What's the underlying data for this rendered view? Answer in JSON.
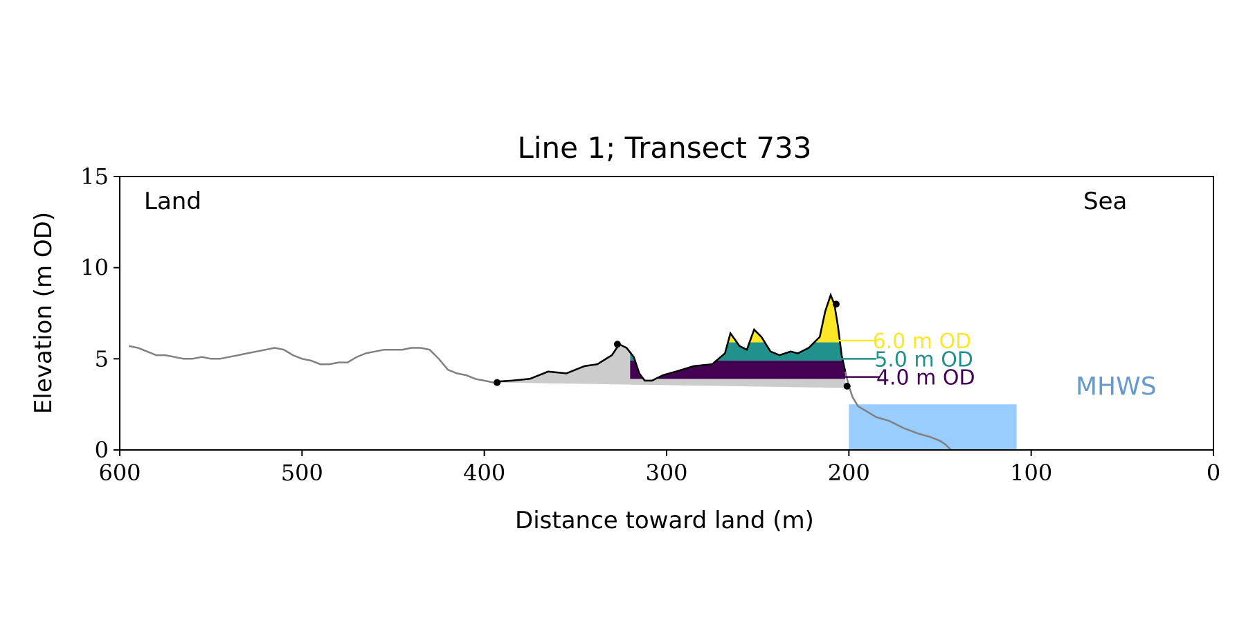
{
  "chart_data": {
    "type": "area",
    "title": "Line 1; Transect 733",
    "xlabel": "Distance toward land (m)",
    "ylabel": "Elevation (m OD)",
    "xlim": [
      600,
      0
    ],
    "ylim": [
      0,
      15
    ],
    "xticks": [
      600,
      500,
      400,
      300,
      200,
      100,
      0
    ],
    "yticks": [
      0,
      5,
      10,
      15
    ],
    "grid": false,
    "annotations": {
      "land": "Land",
      "sea": "Sea"
    },
    "colors": {
      "profile": "#808080",
      "dune_outline": "#000000",
      "dune_fill": "#cccccc",
      "level_6": "#fde725",
      "level_5": "#21918c",
      "level_4": "#440154",
      "mhws": "#99ccff",
      "mhws_label": "#6699cc"
    },
    "profile": {
      "x": [
        595,
        590,
        585,
        580,
        575,
        570,
        565,
        560,
        555,
        550,
        545,
        540,
        535,
        530,
        525,
        520,
        515,
        510,
        505,
        500,
        495,
        490,
        485,
        480,
        475,
        470,
        465,
        460,
        455,
        450,
        445,
        440,
        435,
        430,
        425,
        420,
        415,
        410,
        405,
        400,
        395,
        393,
        385,
        375,
        365,
        355,
        345,
        338,
        330,
        326,
        322,
        318,
        315,
        312,
        308,
        302,
        295,
        285,
        275,
        268,
        265,
        260,
        256,
        252,
        248,
        243,
        238,
        232,
        228,
        222,
        216,
        213,
        210,
        208,
        206,
        204,
        202,
        200,
        198,
        195,
        190,
        185,
        178,
        170,
        162,
        155,
        150,
        147,
        144
      ],
      "y": [
        5.7,
        5.6,
        5.4,
        5.2,
        5.2,
        5.1,
        5.0,
        5.0,
        5.1,
        5.0,
        5.0,
        5.1,
        5.2,
        5.3,
        5.4,
        5.5,
        5.6,
        5.5,
        5.2,
        5.0,
        4.9,
        4.7,
        4.7,
        4.8,
        4.8,
        5.1,
        5.3,
        5.4,
        5.5,
        5.5,
        5.5,
        5.6,
        5.6,
        5.5,
        5.0,
        4.4,
        4.2,
        4.1,
        3.9,
        3.8,
        3.7,
        3.75,
        3.8,
        3.9,
        4.3,
        4.2,
        4.6,
        4.7,
        5.2,
        5.8,
        5.6,
        5.1,
        4.2,
        3.8,
        3.8,
        4.1,
        4.3,
        4.6,
        4.7,
        5.3,
        6.4,
        5.7,
        5.5,
        6.6,
        6.2,
        5.4,
        5.2,
        5.4,
        5.3,
        5.6,
        6.2,
        7.6,
        8.5,
        8.0,
        6.8,
        5.2,
        4.3,
        3.5,
        2.9,
        2.4,
        2.1,
        1.8,
        1.6,
        1.2,
        0.9,
        0.7,
        0.5,
        0.3,
        0.0
      ]
    },
    "dune_section": {
      "x_start": 393,
      "x_end": 201
    },
    "dune_base_line": {
      "x": [
        393,
        201
      ],
      "y": [
        3.7,
        3.4
      ]
    },
    "markers": [
      {
        "x": 393,
        "y": 3.7
      },
      {
        "x": 327,
        "y": 5.8
      },
      {
        "x": 207,
        "y": 8.0
      },
      {
        "x": 201,
        "y": 3.5
      }
    ],
    "levels": [
      {
        "label": "6.0 m OD",
        "y": 6.0,
        "band": [
          5.9,
          8.5
        ],
        "key": "level_6"
      },
      {
        "label": "5.0 m OD",
        "y": 5.0,
        "band": [
          4.9,
          5.9
        ],
        "key": "level_5"
      },
      {
        "label": "4.0 m OD",
        "y": 4.0,
        "band": [
          3.9,
          4.9
        ],
        "key": "level_4"
      }
    ],
    "mhws": {
      "label": "MHWS",
      "level": 2.5,
      "x_range": [
        200,
        108
      ]
    }
  }
}
